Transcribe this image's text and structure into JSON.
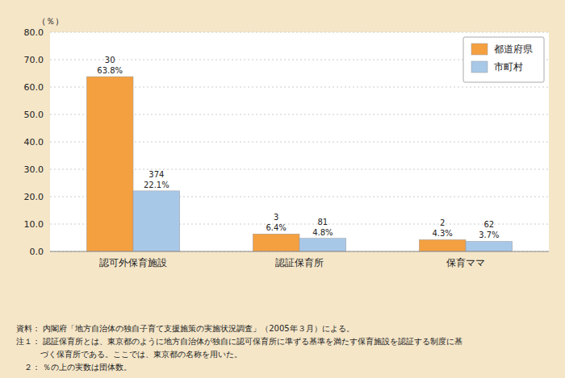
{
  "chart_data": {
    "type": "bar",
    "categories": [
      "認可外保育施設",
      "認証保育所",
      "保育ママ"
    ],
    "series": [
      {
        "name": "都道府県",
        "color": "#F5A040",
        "values": [
          63.8,
          6.4,
          4.3
        ],
        "value_labels": [
          "63.8%",
          "6.4%",
          "4.3%"
        ],
        "counts": [
          30,
          3,
          2
        ]
      },
      {
        "name": "市町村",
        "color": "#A8C8E8",
        "values": [
          22.1,
          4.8,
          3.7
        ],
        "value_labels": [
          "22.1%",
          "4.8%",
          "3.7%"
        ],
        "counts": [
          374,
          81,
          62
        ]
      }
    ],
    "ylabel": "（％）",
    "ylim": [
      0,
      80
    ],
    "yticks": [
      {
        "value": 0,
        "label": "0.0"
      },
      {
        "value": 10,
        "label": "10.0"
      },
      {
        "value": 20,
        "label": "20.0"
      },
      {
        "value": 30,
        "label": "30.0"
      },
      {
        "value": 40,
        "label": "40.0"
      },
      {
        "value": 50,
        "label": "50.0"
      },
      {
        "value": 60,
        "label": "60.0"
      },
      {
        "value": 70,
        "label": "70.0"
      },
      {
        "value": 80,
        "label": "80.0"
      }
    ],
    "grid": true,
    "legend": "upper right",
    "data_labels": true,
    "annotations": [
      "資料： 内閣府「地方自治体の独自子育て支援施策の実施状況調査」（2005年３月）による。",
      "注１： 認証保育所とは、東京都のように地方自治体が独自に認可保育所に準ずる基準を満たす保育施設を認証する制度に基",
      "　　　づく保育所である。ここでは、東京都の名称を用いた。",
      "　２： ％の上の実数は団体数。"
    ]
  }
}
